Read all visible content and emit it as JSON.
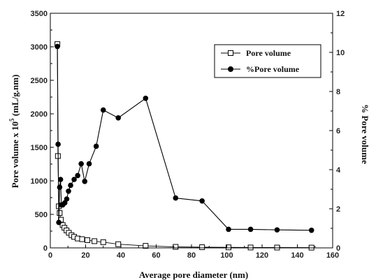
{
  "chart_data": {
    "type": "line",
    "xlabel": "Average pore diameter (nm)",
    "ylabel_left": "Pore volume x 10",
    "ylabel_left_exp": "5",
    "ylabel_left_unit": " (mL/g.nm)",
    "ylabel_right": "% Pore volume",
    "xlim": [
      0,
      160
    ],
    "ylim_left": [
      0,
      3500
    ],
    "ylim_right": [
      0,
      12
    ],
    "xticks": [
      0,
      20,
      40,
      60,
      80,
      100,
      120,
      140,
      160
    ],
    "yticks_left": [
      0,
      500,
      1000,
      1500,
      2000,
      2500,
      3000,
      3500
    ],
    "yticks_right": [
      0,
      2,
      4,
      6,
      8,
      10,
      12
    ],
    "legend_position": "top-right",
    "series": [
      {
        "name": "Pore volume",
        "axis": "left",
        "marker": "open-square",
        "x": [
          4.0,
          4.3,
          4.8,
          5.3,
          6.0,
          7.0,
          8.0,
          9.2,
          10.5,
          12.0,
          13.5,
          15.5,
          18.0,
          21.0,
          25.0,
          30.0,
          38.5,
          54.0,
          71.0,
          86.0,
          101.0,
          113.5,
          128.5,
          148.0
        ],
        "values": [
          3040,
          1370,
          620,
          520,
          420,
          340,
          300,
          260,
          225,
          190,
          165,
          140,
          130,
          115,
          100,
          85,
          55,
          30,
          15,
          10,
          8,
          6,
          5,
          4
        ]
      },
      {
        "name": "%Pore volume",
        "axis": "right",
        "marker": "filled-circle",
        "x": [
          4.0,
          4.4,
          4.8,
          5.3,
          5.8,
          6.3,
          7.0,
          8.2,
          9.3,
          10.3,
          11.5,
          13.5,
          15.5,
          17.5,
          19.5,
          22.0,
          26.0,
          30.0,
          38.5,
          54.0,
          71.0,
          86.0,
          101.0,
          113.5,
          128.5,
          148.0
        ],
        "values": [
          10.3,
          5.3,
          1.3,
          3.1,
          3.5,
          2.2,
          2.2,
          2.3,
          2.5,
          2.9,
          3.2,
          3.5,
          3.7,
          4.3,
          3.4,
          4.3,
          5.2,
          7.05,
          6.65,
          7.65,
          2.55,
          2.4,
          0.95,
          0.95,
          0.92,
          0.9
        ]
      }
    ]
  }
}
